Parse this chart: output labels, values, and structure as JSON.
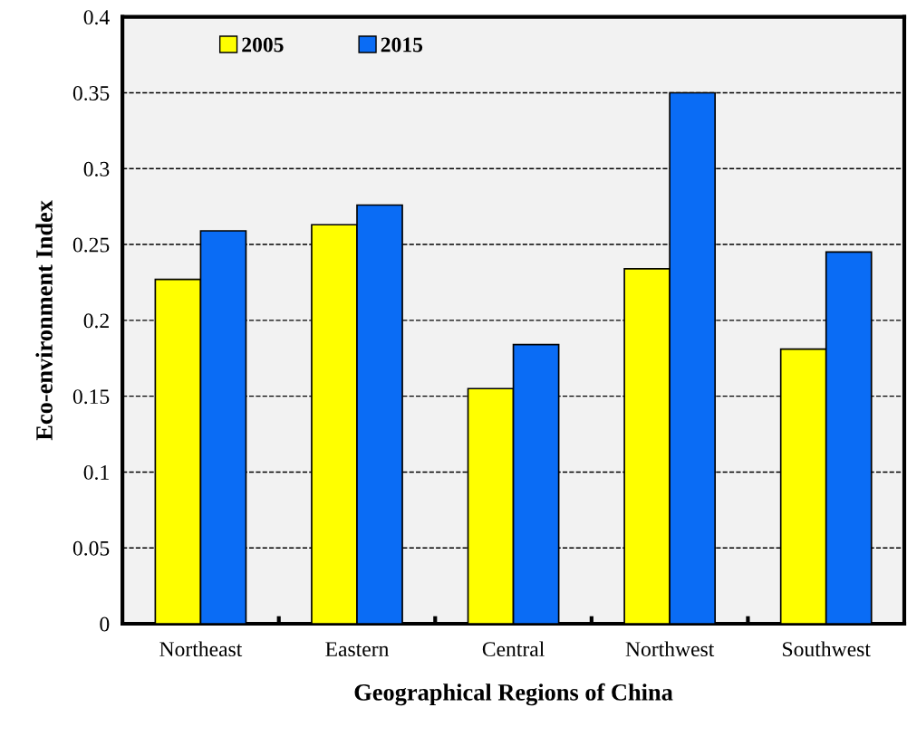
{
  "chart_data": {
    "type": "bar",
    "xlabel": "Geographical Regions of China",
    "ylabel": "Eco-environment Index",
    "categories": [
      "Northeast",
      "Eastern",
      "Central",
      "Northwest",
      "Southwest"
    ],
    "series": [
      {
        "name": "2005",
        "color": "#ffff00",
        "values": [
          0.227,
          0.263,
          0.155,
          0.234,
          0.181
        ]
      },
      {
        "name": "2015",
        "color": "#0a6cf5",
        "values": [
          0.259,
          0.276,
          0.184,
          0.35,
          0.245
        ]
      }
    ],
    "ylim": [
      0,
      0.4
    ],
    "yticks": [
      0,
      0.05,
      0.1,
      0.15,
      0.2,
      0.25,
      0.3,
      0.35,
      0.4
    ],
    "grid": "y",
    "legend": "top left"
  }
}
